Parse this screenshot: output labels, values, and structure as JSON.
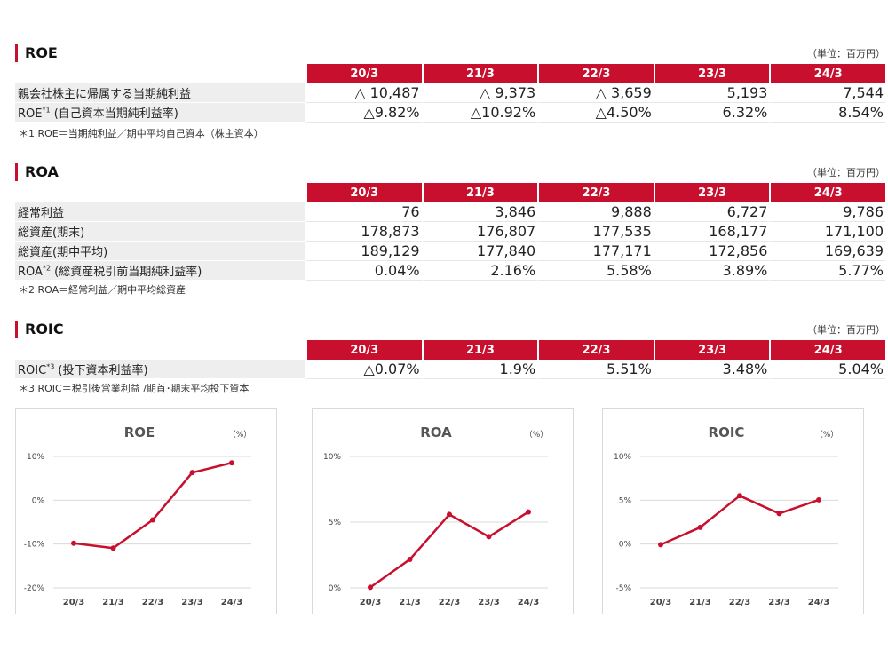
{
  "years": [
    "20/3",
    "21/3",
    "22/3",
    "23/3",
    "24/3"
  ],
  "unit_label": "（単位：百万円）",
  "roe": {
    "title": "ROE",
    "rows": [
      {
        "label": "親会社株主に帰属する当期純利益",
        "sup": "",
        "label_suffix": "",
        "values": [
          "△ 10,487",
          "△ 9,373",
          "△ 3,659",
          "5,193",
          "7,544"
        ]
      },
      {
        "label": "ROE",
        "sup": "*1",
        "label_suffix": " (自己資本当期純利益率)",
        "values": [
          "△9.82%",
          "△10.92%",
          "△4.50%",
          "6.32%",
          "8.54%"
        ]
      }
    ],
    "note": "＊1 ROE＝当期純利益／期中平均自己資本（株主資本）"
  },
  "roa": {
    "title": "ROA",
    "rows": [
      {
        "label": "経常利益",
        "sup": "",
        "label_suffix": "",
        "values": [
          "76",
          "3,846",
          "9,888",
          "6,727",
          "9,786"
        ]
      },
      {
        "label": "総資産(期末)",
        "sup": "",
        "label_suffix": "",
        "values": [
          "178,873",
          "176,807",
          "177,535",
          "168,177",
          "171,100"
        ]
      },
      {
        "label": "総資産(期中平均)",
        "sup": "",
        "label_suffix": "",
        "values": [
          "189,129",
          "177,840",
          "177,171",
          "172,856",
          "169,639"
        ]
      },
      {
        "label": "ROA",
        "sup": "*2",
        "label_suffix": " (総資産税引前当期純利益率)",
        "values": [
          "0.04%",
          "2.16%",
          "5.58%",
          "3.89%",
          "5.77%"
        ]
      }
    ],
    "note": "＊2 ROA＝経常利益／期中平均総資産"
  },
  "roic": {
    "title": "ROIC",
    "rows": [
      {
        "label": "ROIC",
        "sup": "*3",
        "label_suffix": " (投下資本利益率)",
        "values": [
          "△0.07%",
          "1.9%",
          "5.51%",
          "3.48%",
          "5.04%"
        ]
      }
    ],
    "note": "＊3 ROIC＝税引後営業利益 /期首･期末平均投下資本"
  },
  "colors": {
    "accent": "#c8102e",
    "grid": "#d9d9d9"
  },
  "chart_data": [
    {
      "type": "line",
      "title": "ROE",
      "unit": "（%）",
      "x": [
        "20/3",
        "21/3",
        "22/3",
        "23/3",
        "24/3"
      ],
      "series": [
        {
          "values": [
            -9.82,
            -10.92,
            -4.5,
            6.32,
            8.54
          ]
        }
      ],
      "ylim": [
        -20,
        10
      ],
      "yticks": [
        10,
        0,
        -10,
        -20
      ],
      "ytick_labels": [
        "10%",
        "0%",
        "-10%",
        "-20%"
      ],
      "grid": true
    },
    {
      "type": "line",
      "title": "ROA",
      "unit": "（%）",
      "x": [
        "20/3",
        "21/3",
        "22/3",
        "23/3",
        "24/3"
      ],
      "series": [
        {
          "values": [
            0.04,
            2.16,
            5.58,
            3.89,
            5.77
          ]
        }
      ],
      "ylim": [
        0,
        10
      ],
      "yticks": [
        10,
        5,
        0
      ],
      "ytick_labels": [
        "10%",
        "5%",
        "0%"
      ],
      "grid": true
    },
    {
      "type": "line",
      "title": "ROIC",
      "unit": "（%）",
      "x": [
        "20/3",
        "21/3",
        "22/3",
        "23/3",
        "24/3"
      ],
      "series": [
        {
          "values": [
            -0.07,
            1.9,
            5.51,
            3.48,
            5.04
          ]
        }
      ],
      "ylim": [
        -5,
        10
      ],
      "yticks": [
        10,
        5,
        0,
        -5
      ],
      "ytick_labels": [
        "10%",
        "5%",
        "0%",
        "-5%"
      ],
      "grid": true
    }
  ]
}
